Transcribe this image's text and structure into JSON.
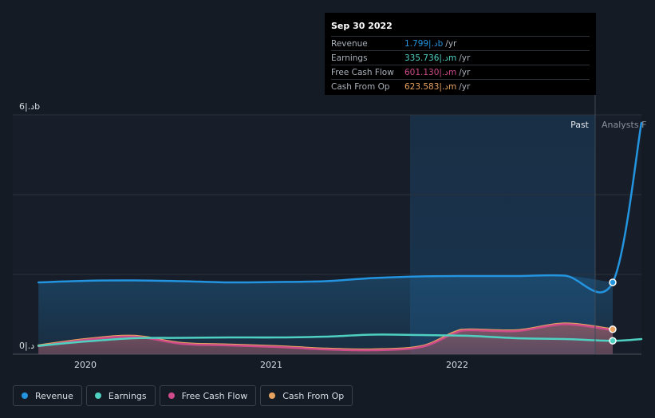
{
  "chart_data": {
    "type": "line",
    "y_axis": {
      "max_label": "6|.دb",
      "min_label": "0|.د",
      "ylim": [
        0,
        6
      ]
    },
    "x_ticks": [
      "2020",
      "2021",
      "2022"
    ],
    "regions": {
      "past_label": "Past",
      "forecast_label": "Analysts F"
    },
    "grid": true,
    "legend_position": "bottom-left",
    "series": [
      {
        "name": "Revenue",
        "color": "#2394df",
        "area": true,
        "x": [
          2019.75,
          2020.0,
          2020.25,
          2020.5,
          2020.75,
          2021.0,
          2021.25,
          2021.5,
          2021.75,
          2022.0,
          2022.25,
          2022.5,
          2022.75,
          2022.9
        ],
        "y": [
          1.8,
          1.84,
          1.85,
          1.83,
          1.8,
          1.81,
          1.83,
          1.91,
          1.95,
          1.96,
          1.96,
          1.97,
          1.8,
          5.8
        ]
      },
      {
        "name": "Earnings",
        "color": "#4fd1c2",
        "area": false,
        "x": [
          2019.75,
          2020.0,
          2020.25,
          2020.5,
          2020.75,
          2021.0,
          2021.25,
          2021.5,
          2021.75,
          2022.0,
          2022.25,
          2022.5,
          2022.75,
          2022.9
        ],
        "y": [
          0.21,
          0.32,
          0.4,
          0.41,
          0.42,
          0.42,
          0.44,
          0.49,
          0.48,
          0.46,
          0.4,
          0.38,
          0.336,
          0.38
        ]
      },
      {
        "name": "Free Cash Flow",
        "color": "#cc4b88",
        "area": true,
        "x": [
          2019.75,
          2020.0,
          2020.25,
          2020.5,
          2020.75,
          2021.0,
          2021.25,
          2021.5,
          2021.75,
          2021.92,
          2022.0,
          2022.25,
          2022.5,
          2022.75
        ],
        "y": [
          0.2,
          0.36,
          0.44,
          0.26,
          0.22,
          0.18,
          0.12,
          0.1,
          0.18,
          0.52,
          0.6,
          0.58,
          0.75,
          0.601
        ]
      },
      {
        "name": "Cash From Op",
        "color": "#e8a360",
        "area": true,
        "x": [
          2019.75,
          2020.0,
          2020.25,
          2020.5,
          2020.75,
          2021.0,
          2021.25,
          2021.5,
          2021.75,
          2021.92,
          2022.0,
          2022.25,
          2022.5,
          2022.75
        ],
        "y": [
          0.22,
          0.38,
          0.46,
          0.28,
          0.24,
          0.2,
          0.14,
          0.12,
          0.2,
          0.55,
          0.62,
          0.6,
          0.77,
          0.624
        ]
      }
    ],
    "highlight_x": 2022.75
  },
  "tooltip": {
    "date": "Sep 30 2022",
    "rows": [
      {
        "label": "Revenue",
        "value": "1.799|.دb",
        "unit": "/yr",
        "color": "#2394df"
      },
      {
        "label": "Earnings",
        "value": "335.736|.دm",
        "unit": "/yr",
        "color": "#4fd1c2"
      },
      {
        "label": "Free Cash Flow",
        "value": "601.130|.دm",
        "unit": "/yr",
        "color": "#cc4b88"
      },
      {
        "label": "Cash From Op",
        "value": "623.583|.دm",
        "unit": "/yr",
        "color": "#e8a360"
      }
    ]
  },
  "legend": [
    {
      "label": "Revenue",
      "color": "#2394df"
    },
    {
      "label": "Earnings",
      "color": "#4fd1c2"
    },
    {
      "label": "Free Cash Flow",
      "color": "#cc4b88"
    },
    {
      "label": "Cash From Op",
      "color": "#e8a360"
    }
  ]
}
